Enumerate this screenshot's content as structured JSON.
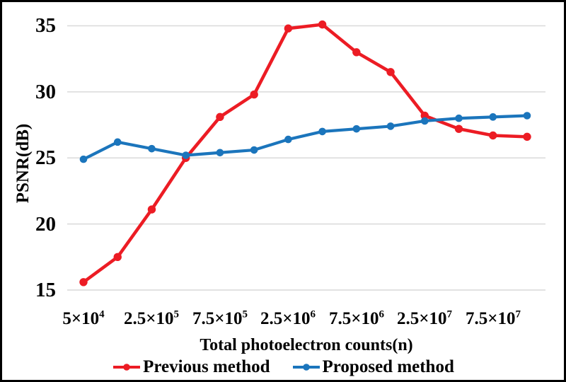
{
  "chart_data": {
    "type": "line",
    "title": "",
    "xlabel": "Total photoelectron counts(n)",
    "ylabel": "PSNR(dB)",
    "ylim": [
      15,
      35
    ],
    "y_tick_step": 5,
    "grid": "horizontal-only",
    "grid_color": "#d9d9d9",
    "legend_position": "bottom-center",
    "yticks": [
      "35",
      "30",
      "25",
      "20",
      "15"
    ],
    "xticks": [
      {
        "base": "5×10",
        "exp": "4"
      },
      {
        "base": "2.5×10",
        "exp": "5"
      },
      {
        "base": "7.5×10",
        "exp": "5"
      },
      {
        "base": "2.5×10",
        "exp": "6"
      },
      {
        "base": "7.5×10",
        "exp": "6"
      },
      {
        "base": "2.5×10",
        "exp": "7"
      },
      {
        "base": "7.5×10",
        "exp": "7"
      }
    ],
    "categories": [
      "5×10⁴",
      "",
      "2.5×10⁵",
      "",
      "7.5×10⁵",
      "",
      "2.5×10⁶",
      "",
      "7.5×10⁶",
      "",
      "2.5×10⁷",
      "",
      "7.5×10⁷",
      ""
    ],
    "series": [
      {
        "name": "Previous method",
        "color": "#ec1c24",
        "values": [
          15.6,
          17.5,
          21.1,
          25.0,
          28.1,
          29.8,
          34.8,
          35.1,
          33.0,
          31.5,
          28.2,
          27.2,
          26.7,
          26.6
        ]
      },
      {
        "name": "Proposed method",
        "color": "#1b75bc",
        "values": [
          24.9,
          26.2,
          25.7,
          25.2,
          25.4,
          25.6,
          26.4,
          27.0,
          27.2,
          27.4,
          27.8,
          28.0,
          28.1,
          28.2
        ]
      }
    ]
  }
}
